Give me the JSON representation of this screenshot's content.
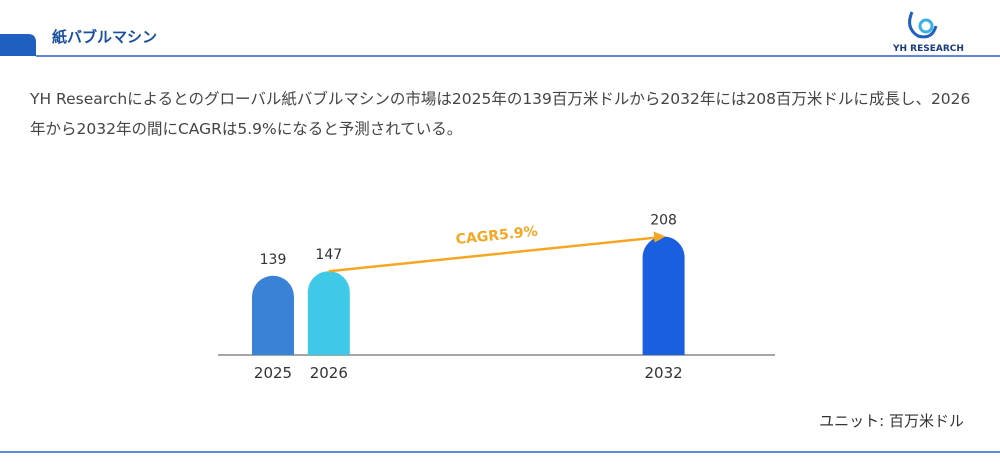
{
  "header": {
    "title": "紙バブルマシン",
    "logo": "YH RESEARCH"
  },
  "description": "YH Researchによるとのグローバル紙バブルマシンの市場は2025年の139百万米ドルから2032年には208百万米ドルに成長し、2026年から2032年の間にCAGRは5.9%になると予測されている。",
  "chart_data": {
    "type": "bar",
    "x": [
      2025,
      2026,
      2032
    ],
    "values": [
      139,
      147,
      208
    ],
    "colors": [
      "#3a82d6",
      "#3ec9e6",
      "#1a5fe0"
    ],
    "annotation": "CAGR5.9%",
    "annotation_color": "#f5a623",
    "unit": "ユニット: 百万米ドル"
  }
}
